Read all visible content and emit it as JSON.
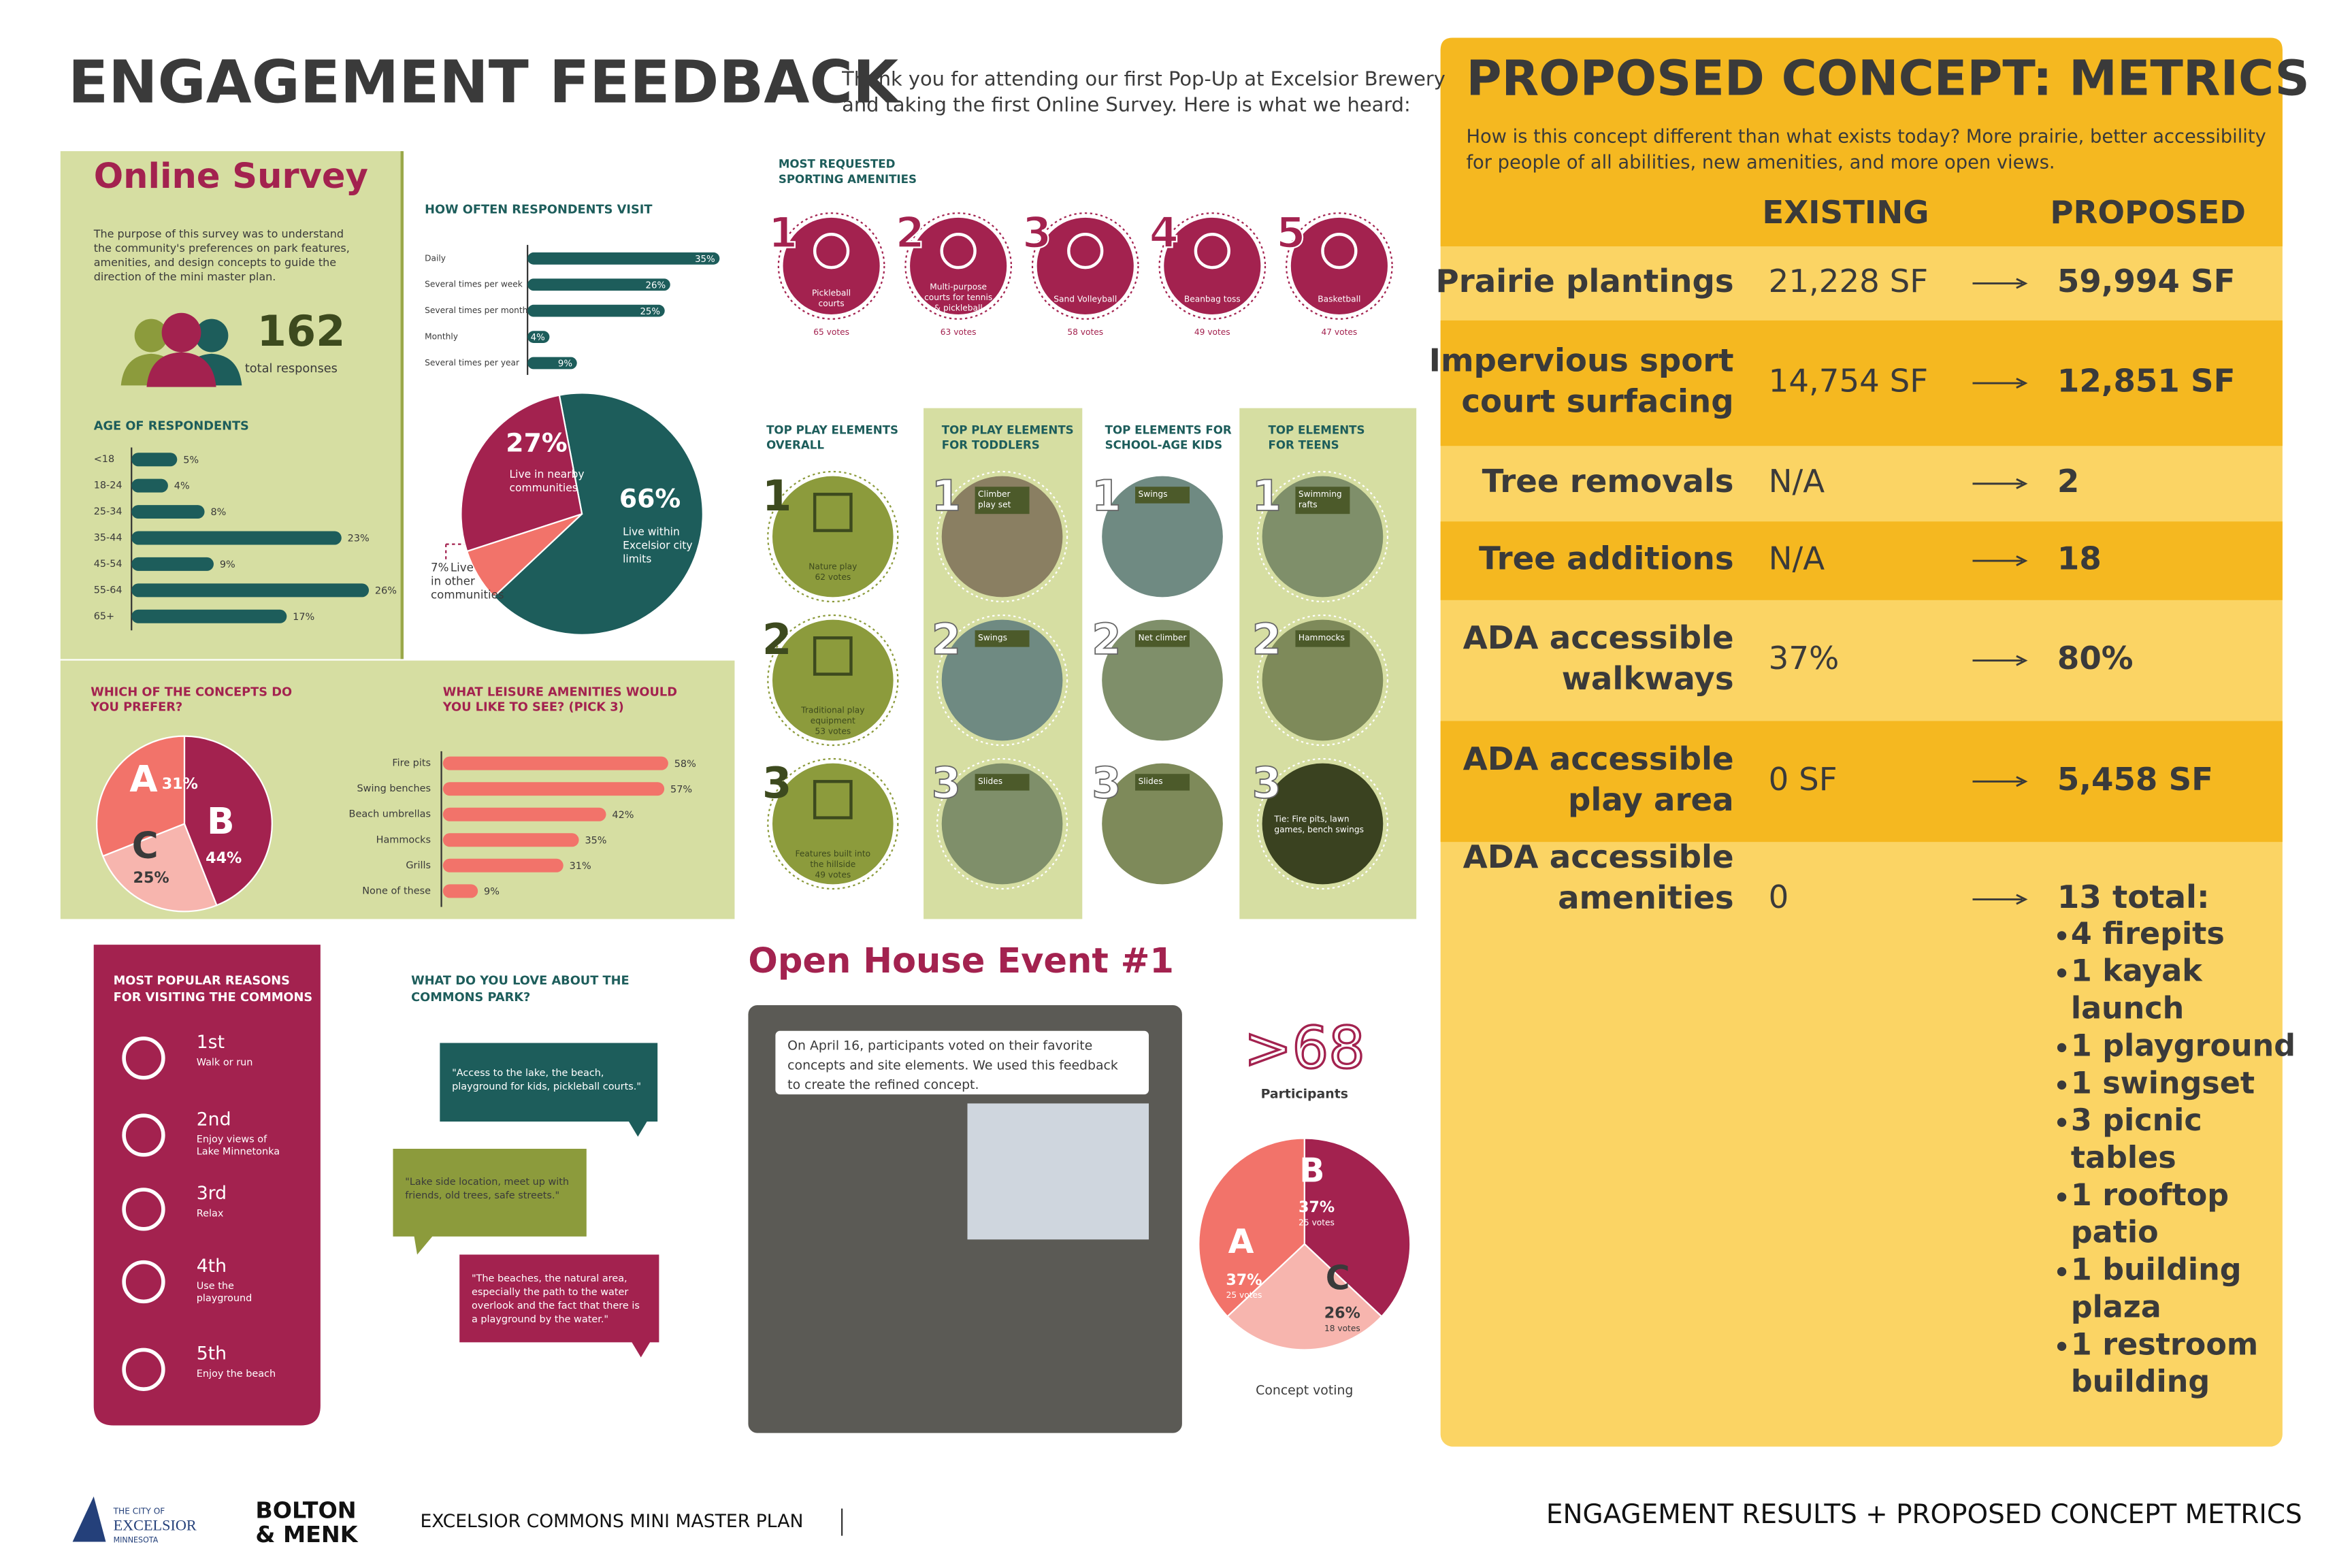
{
  "header": {
    "title": "ENGAGEMENT FEEDBACK",
    "intro": [
      "Thank you for attending our first Pop-Up at Excelsior Brewery",
      "and taking the first Online Survey. Here is what we heard:"
    ]
  },
  "online_survey": {
    "title": "Online Survey",
    "description": [
      "The purpose of this survey was to understand",
      "the community's preferences on park features,",
      "amenities, and design concepts to guide the",
      "direction of the mini master plan."
    ],
    "responses": "162",
    "responses_label": "total responses"
  },
  "age_chart": {
    "title": "AGE OF RESPONDENTS",
    "categories": [
      "<18",
      "18-24",
      "25-34",
      "35-44",
      "45-54",
      "55-64",
      "65+"
    ],
    "values": [
      5,
      4,
      8,
      23,
      9,
      26,
      17
    ],
    "value_labels": [
      "5%",
      "4%",
      "8%",
      "23%",
      "9%",
      "26%",
      "17%"
    ],
    "color": "#1d5d5b"
  },
  "visit_chart": {
    "title": "HOW OFTEN RESPONDENTS VISIT",
    "categories": [
      "Daily",
      "Several times per week",
      "Several times per month",
      "Monthly",
      "Several times per year"
    ],
    "values": [
      35,
      26,
      25,
      4,
      9
    ],
    "value_labels": [
      "35%",
      "26%",
      "25%",
      "4%",
      "9%"
    ],
    "color": "#1d5d5b"
  },
  "residence_pie": {
    "values": [
      66,
      7,
      27
    ],
    "value_labels": [
      "66%",
      "7%",
      "27%"
    ],
    "descriptions": [
      [
        "Live within",
        "Excelsior city",
        "limits"
      ],
      [
        "Live",
        "in other",
        "communities"
      ],
      [
        "Live in nearby",
        "communities"
      ]
    ],
    "colors": [
      "#1d5d5b",
      "#f2736a",
      "#a3224f"
    ]
  },
  "sporting": {
    "title": [
      "MOST REQUESTED",
      "SPORTING AMENITIES"
    ],
    "items": [
      {
        "rank": "1",
        "label": [
          "Pickleball",
          "courts"
        ],
        "votes": "65 votes"
      },
      {
        "rank": "2",
        "label": [
          "Multi-purpose",
          "courts for tennis",
          "& pickleball"
        ],
        "votes": "63 votes"
      },
      {
        "rank": "3",
        "label": [
          "Sand Volleyball"
        ],
        "votes": "58 votes"
      },
      {
        "rank": "4",
        "label": [
          "Beanbag toss"
        ],
        "votes": "49 votes"
      },
      {
        "rank": "5",
        "label": [
          "Basketball"
        ],
        "votes": "47 votes"
      }
    ]
  },
  "play": {
    "columns": [
      {
        "title": [
          "TOP PLAY ELEMENTS",
          "OVERALL"
        ],
        "items": [
          {
            "rank": "1",
            "label": [
              "Nature play"
            ],
            "votes": "62 votes"
          },
          {
            "rank": "2",
            "label": [
              "Traditional play",
              "equipment"
            ],
            "votes": "53 votes"
          },
          {
            "rank": "3",
            "label": [
              "Features built into",
              "the hillside"
            ],
            "votes": "49 votes"
          }
        ]
      },
      {
        "title": [
          "TOP PLAY ELEMENTS",
          "FOR TODDLERS"
        ],
        "items": [
          {
            "rank": "1",
            "label": [
              "Climber",
              "play set"
            ]
          },
          {
            "rank": "2",
            "label": [
              "Swings"
            ]
          },
          {
            "rank": "3",
            "label": [
              "Slides"
            ]
          }
        ]
      },
      {
        "title": [
          "TOP ELEMENTS FOR",
          "SCHOOL-AGE KIDS"
        ],
        "items": [
          {
            "rank": "1",
            "label": [
              "Swings"
            ]
          },
          {
            "rank": "2",
            "label": [
              "Net climber"
            ]
          },
          {
            "rank": "3",
            "label": [
              "Slides"
            ]
          }
        ]
      },
      {
        "title": [
          "TOP ELEMENTS",
          "FOR TEENS"
        ],
        "items": [
          {
            "rank": "1",
            "label": [
              "Swimming",
              "rafts"
            ]
          },
          {
            "rank": "2",
            "label": [
              "Hammocks"
            ]
          },
          {
            "rank": "3",
            "label": [
              "Tie: Fire pits, lawn",
              "games, bench swings"
            ]
          }
        ]
      }
    ]
  },
  "concept_pie": {
    "title": [
      "WHICH OF THE CONCEPTS DO",
      "YOU PREFER?"
    ],
    "categories": [
      "B",
      "C",
      "A"
    ],
    "values": [
      44,
      25,
      31
    ],
    "value_labels": [
      "44%",
      "25%",
      "31%"
    ],
    "colors": [
      "#a3224f",
      "#f7b5ae",
      "#f2736a"
    ]
  },
  "leisure_chart": {
    "title": [
      "WHAT LEISURE AMENITIES WOULD",
      "YOU LIKE TO SEE? (PICK 3)"
    ],
    "categories": [
      "Fire pits",
      "Swing benches",
      "Beach umbrellas",
      "Hammocks",
      "Grills",
      "None of these"
    ],
    "values": [
      58,
      57,
      42,
      35,
      31,
      9
    ],
    "value_labels": [
      "58%",
      "57%",
      "42%",
      "35%",
      "31%",
      "9%"
    ],
    "color": "#f2736a"
  },
  "reasons": {
    "title": [
      "MOST POPULAR REASONS",
      "FOR VISITING THE COMMONS"
    ],
    "items": [
      {
        "rank": "1st",
        "label": [
          "Walk or run"
        ]
      },
      {
        "rank": "2nd",
        "label": [
          "Enjoy views of",
          "Lake Minnetonka"
        ]
      },
      {
        "rank": "3rd",
        "label": [
          "Relax"
        ]
      },
      {
        "rank": "4th",
        "label": [
          "Use the",
          "playground"
        ]
      },
      {
        "rank": "5th",
        "label": [
          "Enjoy the beach"
        ]
      }
    ]
  },
  "love": {
    "title": [
      "WHAT DO YOU LOVE ABOUT THE",
      "COMMONS PARK?"
    ],
    "quotes": [
      [
        "\"Access to the lake, the beach,",
        "playground for kids, pickleball courts.\""
      ],
      [
        "\"Lake side location, meet up with",
        "friends, old trees, safe streets.\""
      ],
      [
        "\"The beaches, the natural area,",
        "especially the path to the water",
        "overlook and the fact that there is",
        "a playground by the water.\""
      ]
    ]
  },
  "open_house": {
    "title": "Open House Event #1",
    "caption": [
      "On April 16, participants voted on their favorite",
      "concepts and site elements. We used this feedback",
      "to create the refined concept."
    ],
    "participants": ">68",
    "participants_label": "Participants",
    "voting_pie": {
      "title": "Concept voting",
      "categories": [
        "B",
        "C",
        "A"
      ],
      "values": [
        37,
        26,
        37
      ],
      "value_labels": [
        "37%",
        "26%",
        "37%"
      ],
      "votes": [
        "25 votes",
        "18 votes",
        "25 votes"
      ],
      "colors": [
        "#a3224f",
        "#f7b5ae",
        "#f2736a"
      ]
    }
  },
  "metrics": {
    "title": "PROPOSED CONCEPT: METRICS",
    "intro": [
      "How is this concept different than what exists today? More prairie, better accessibility",
      "for people of all abilities, new amenities, and more open views."
    ],
    "headers": [
      "EXISTING",
      "PROPOSED"
    ],
    "rows": [
      {
        "label": [
          "Prairie plantings"
        ],
        "existing": "21,228 SF",
        "proposed": "59,994 SF"
      },
      {
        "label": [
          "Impervious sport",
          "court surfacing"
        ],
        "existing": "14,754 SF",
        "proposed": "12,851 SF"
      },
      {
        "label": [
          "Tree removals"
        ],
        "existing": "N/A",
        "proposed": "2"
      },
      {
        "label": [
          "Tree additions"
        ],
        "existing": "N/A",
        "proposed": "18"
      },
      {
        "label": [
          "ADA accessible",
          "walkways"
        ],
        "existing": "37%",
        "proposed": "80%"
      },
      {
        "label": [
          "ADA accessible",
          "play area"
        ],
        "existing": "0 SF",
        "proposed": "5,458 SF"
      },
      {
        "label": [
          "ADA accessible",
          "amenities"
        ],
        "existing": "0",
        "proposed": "13 total:"
      }
    ],
    "amenities": [
      [
        "4 firepits"
      ],
      [
        "1 kayak",
        "launch"
      ],
      [
        "1 playground"
      ],
      [
        "1 swingset"
      ],
      [
        "3 picnic",
        "tables"
      ],
      [
        "1 rooftop",
        "patio"
      ],
      [
        "1 building",
        "plaza"
      ],
      [
        "1 restroom",
        "building"
      ]
    ]
  },
  "footer": {
    "city": [
      "THE CITY OF",
      "EXCELSIOR",
      "MINNESOTA"
    ],
    "firm": [
      "BOLTON",
      "& MENK"
    ],
    "project": "EXCELSIOR COMMONS MINI MASTER PLAN",
    "subtitle": "ENGAGEMENT RESULTS + PROPOSED CONCEPT METRICS"
  }
}
